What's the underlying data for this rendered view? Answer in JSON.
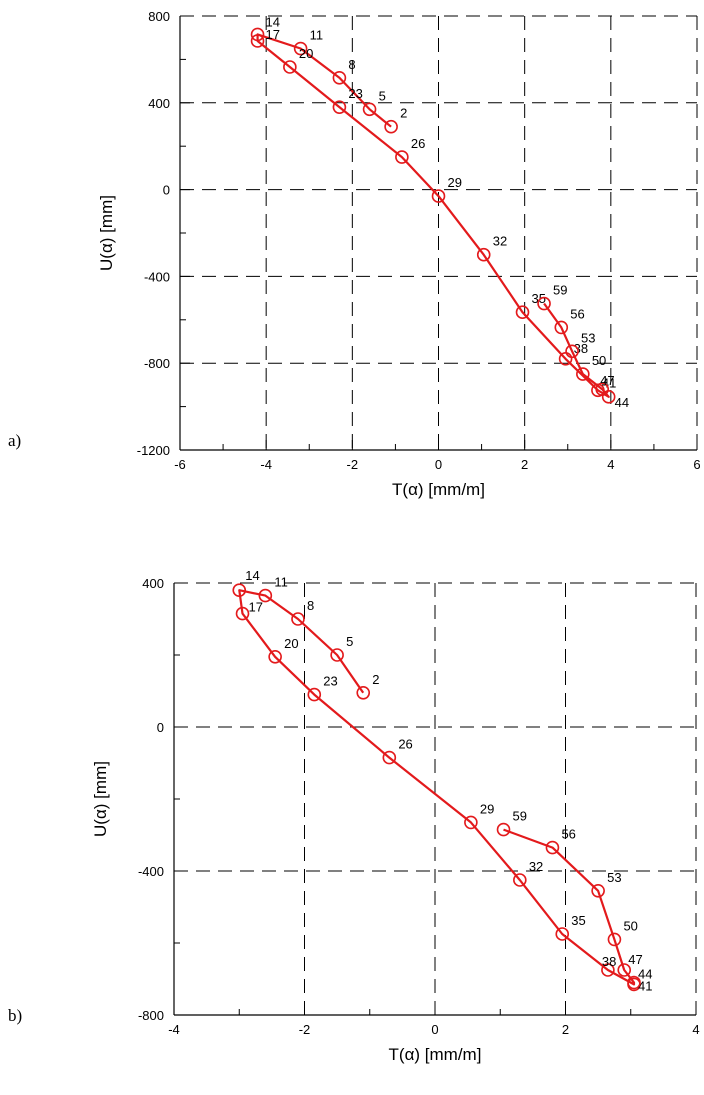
{
  "chart_data": [
    {
      "panel_label": "a)",
      "type": "line",
      "xlabel": "T(α) [mm/m]",
      "ylabel": "U(α) [mm]",
      "xlim": [
        -6,
        6
      ],
      "ylim": [
        -1200,
        800
      ],
      "x_ticks": [
        -6,
        -4,
        -2,
        0,
        2,
        4,
        6
      ],
      "y_ticks": [
        -1200,
        -800,
        -400,
        0,
        400,
        800
      ],
      "grid": true,
      "series_color": "#e31a1c",
      "points": [
        {
          "label": "2",
          "x": -1.1,
          "y": 290
        },
        {
          "label": "5",
          "x": -1.6,
          "y": 370
        },
        {
          "label": "8",
          "x": -2.3,
          "y": 515
        },
        {
          "label": "11",
          "x": -3.2,
          "y": 650
        },
        {
          "label": "14",
          "x": -4.2,
          "y": 715
        },
        {
          "label": "17",
          "x": -4.2,
          "y": 685
        },
        {
          "label": "20",
          "x": -3.45,
          "y": 565
        },
        {
          "label": "23",
          "x": -2.3,
          "y": 380
        },
        {
          "label": "26",
          "x": -0.85,
          "y": 150
        },
        {
          "label": "29",
          "x": 0.0,
          "y": -30
        },
        {
          "label": "32",
          "x": 1.05,
          "y": -300
        },
        {
          "label": "35",
          "x": 1.95,
          "y": -565
        },
        {
          "label": "38",
          "x": 2.95,
          "y": -780
        },
        {
          "label": "41",
          "x": 3.7,
          "y": -925
        },
        {
          "label": "44",
          "x": 3.95,
          "y": -955
        },
        {
          "label": "47",
          "x": 3.8,
          "y": -920
        },
        {
          "label": "50",
          "x": 3.35,
          "y": -850
        },
        {
          "label": "53",
          "x": 3.1,
          "y": -745
        },
        {
          "label": "56",
          "x": 2.85,
          "y": -635
        },
        {
          "label": "59",
          "x": 2.45,
          "y": -525
        }
      ]
    },
    {
      "panel_label": "b)",
      "type": "line",
      "xlabel": "T(α) [mm/m]",
      "ylabel": "U(α) [mm]",
      "xlim": [
        -4,
        4
      ],
      "ylim": [
        -800,
        400
      ],
      "x_ticks": [
        -4,
        -2,
        0,
        2,
        4
      ],
      "y_ticks": [
        -800,
        -400,
        0,
        400
      ],
      "grid": true,
      "series_color": "#e31a1c",
      "points": [
        {
          "label": "2",
          "x": -1.1,
          "y": 95
        },
        {
          "label": "5",
          "x": -1.5,
          "y": 200
        },
        {
          "label": "8",
          "x": -2.1,
          "y": 300
        },
        {
          "label": "11",
          "x": -2.6,
          "y": 365
        },
        {
          "label": "14",
          "x": -3.0,
          "y": 380
        },
        {
          "label": "17",
          "x": -2.95,
          "y": 315
        },
        {
          "label": "20",
          "x": -2.45,
          "y": 195
        },
        {
          "label": "23",
          "x": -1.85,
          "y": 90
        },
        {
          "label": "26",
          "x": -0.7,
          "y": -85
        },
        {
          "label": "29",
          "x": 0.55,
          "y": -265
        },
        {
          "label": "32",
          "x": 1.3,
          "y": -425
        },
        {
          "label": "35",
          "x": 1.95,
          "y": -575
        },
        {
          "label": "38",
          "x": 2.65,
          "y": -675
        },
        {
          "label": "41",
          "x": 3.05,
          "y": -715
        },
        {
          "label": "44",
          "x": 3.05,
          "y": -710
        },
        {
          "label": "47",
          "x": 2.9,
          "y": -675
        },
        {
          "label": "50",
          "x": 2.75,
          "y": -590
        },
        {
          "label": "53",
          "x": 2.5,
          "y": -455
        },
        {
          "label": "56",
          "x": 1.8,
          "y": -335
        },
        {
          "label": "59",
          "x": 1.05,
          "y": -285
        }
      ]
    }
  ]
}
